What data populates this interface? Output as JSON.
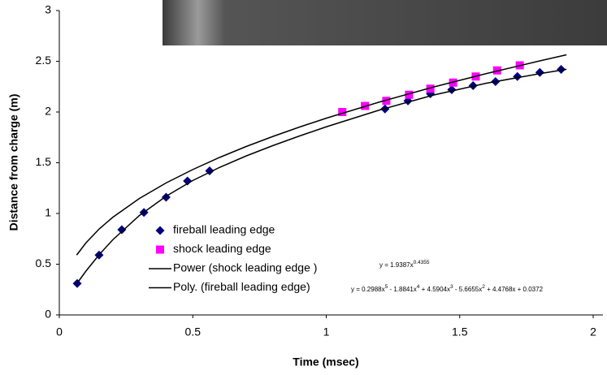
{
  "chart_data": {
    "type": "scatter",
    "x_label": "Time (msec)",
    "y_label": "Distance from charge (m)",
    "xlim": [
      0,
      2
    ],
    "ylim": [
      0,
      3
    ],
    "xticks": [
      0,
      0.5,
      1,
      1.5,
      2
    ],
    "yticks": [
      0,
      0.5,
      1,
      1.5,
      2,
      2.5,
      3
    ],
    "legend": "lower left",
    "series": [
      {
        "name": "fireball leading edge",
        "color": "#000080",
        "marker": "diamond",
        "x": [
          0.067,
          0.149,
          0.234,
          0.317,
          0.4,
          0.48,
          0.563,
          1.22,
          1.306,
          1.39,
          1.47,
          1.55,
          1.634,
          1.716,
          1.8,
          1.88
        ],
        "values": [
          0.31,
          0.59,
          0.84,
          1.01,
          1.16,
          1.32,
          1.42,
          2.03,
          2.11,
          2.18,
          2.22,
          2.26,
          2.3,
          2.35,
          2.39,
          2.42
        ]
      },
      {
        "name": "shock leading edge",
        "color": "#ff00ff",
        "marker": "square",
        "x": [
          1.06,
          1.145,
          1.225,
          1.31,
          1.39,
          1.475,
          1.56,
          1.64,
          1.725
        ],
        "values": [
          2.0,
          2.06,
          2.11,
          2.17,
          2.23,
          2.29,
          2.35,
          2.41,
          2.46
        ]
      },
      {
        "name": "Power (shock leading edge )",
        "color": "#000000",
        "marker": "line",
        "x": [
          0.065,
          0.1,
          0.15,
          0.2,
          0.3,
          0.4,
          0.5,
          0.6,
          0.7,
          0.8,
          0.9,
          1.0,
          1.2,
          1.4,
          1.6,
          1.8,
          1.9
        ],
        "values": [
          0.59,
          0.711,
          0.849,
          0.962,
          1.148,
          1.301,
          1.433,
          1.552,
          1.66,
          1.759,
          1.852,
          1.939,
          2.099,
          2.245,
          2.379,
          2.504,
          2.564
        ],
        "equation": [
          "y = 1.9387x",
          "0.4355"
        ]
      },
      {
        "name": "Poly. (fireball leading edge)",
        "color": "#000000",
        "marker": "line",
        "x": [
          0.065,
          0.1,
          0.15,
          0.2,
          0.3,
          0.4,
          0.5,
          0.6,
          0.7,
          0.8,
          0.9,
          1.0,
          1.2,
          1.4,
          1.6,
          1.8,
          1.9
        ],
        "values": [
          0.306,
          0.433,
          0.596,
          0.74,
          0.98,
          1.17,
          1.325,
          1.454,
          1.567,
          1.669,
          1.764,
          1.854,
          2.02,
          2.166,
          2.284,
          2.378,
          2.421
        ],
        "equation": [
          "y = 0.2988x",
          "5",
          " - 1.8841x",
          "4",
          " + 4.5904x",
          "3",
          " - 5.6655x",
          "2",
          " + 4.4768x + 0.0372"
        ]
      }
    ]
  }
}
